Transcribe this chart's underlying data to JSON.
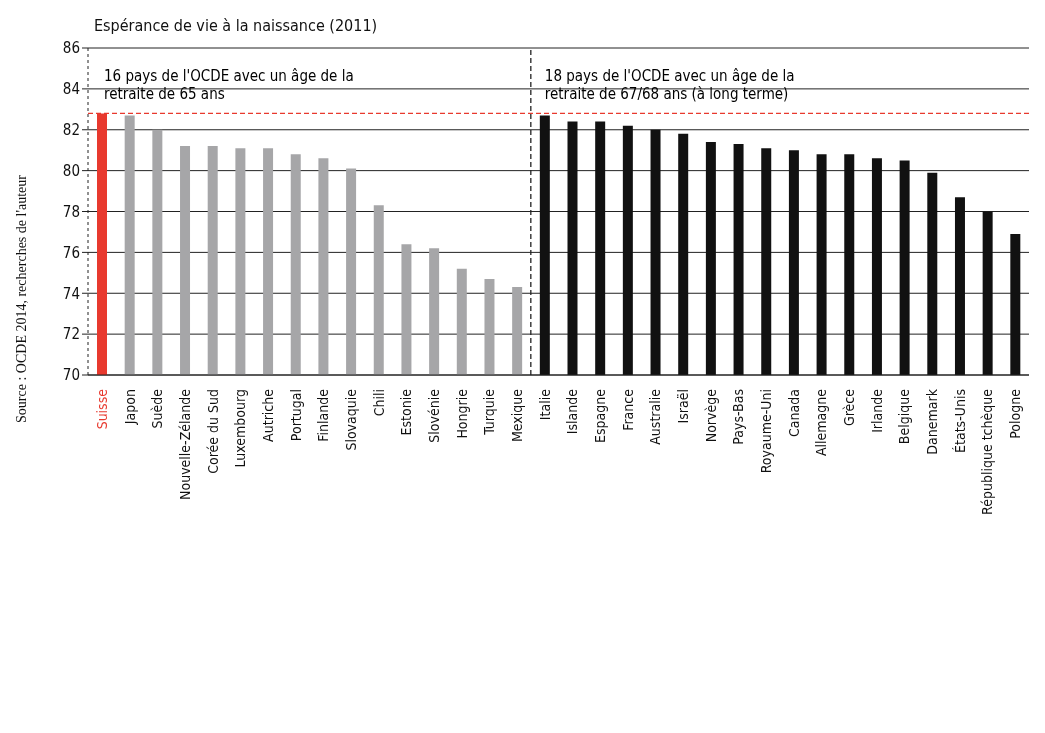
{
  "chart_data": {
    "type": "bar",
    "title": "Espérance de vie à la naissance (2011)",
    "categories": [
      "Suisse",
      "Japon",
      "Suède",
      "Nouvelle-Zélande",
      "Corée du Sud",
      "Luxembourg",
      "Autriche",
      "Portugal",
      "Finlande",
      "Slovaquie",
      "Chili",
      "Estonie",
      "Slovénie",
      "Hongrie",
      "Turquie",
      "Mexique",
      "Italie",
      "Islande",
      "Espagne",
      "France",
      "Australie",
      "Israël",
      "Norvège",
      "Pays-Bas",
      "Royaume-Uni",
      "Canada",
      "Allemagne",
      "Grèce",
      "Irlande",
      "Belgique",
      "Danemark",
      "États-Unis",
      "République tchèque",
      "Pologne"
    ],
    "values": [
      82.8,
      82.7,
      82.0,
      81.2,
      81.2,
      81.1,
      81.1,
      80.8,
      80.6,
      80.1,
      78.3,
      76.4,
      76.2,
      75.2,
      74.7,
      74.3,
      82.7,
      82.4,
      82.4,
      82.2,
      82.0,
      81.8,
      81.4,
      81.3,
      81.1,
      81.0,
      80.8,
      80.8,
      80.6,
      80.5,
      79.9,
      78.7,
      78.0,
      76.9
    ],
    "colors": [
      "#e8392e",
      "#a6a6a8",
      "#a6a6a8",
      "#a6a6a8",
      "#a6a6a8",
      "#a6a6a8",
      "#a6a6a8",
      "#a6a6a8",
      "#a6a6a8",
      "#a6a6a8",
      "#a6a6a8",
      "#a6a6a8",
      "#a6a6a8",
      "#a6a6a8",
      "#a6a6a8",
      "#a6a6a8",
      "#111111",
      "#111111",
      "#111111",
      "#111111",
      "#111111",
      "#111111",
      "#111111",
      "#111111",
      "#111111",
      "#111111",
      "#111111",
      "#111111",
      "#111111",
      "#111111",
      "#111111",
      "#111111",
      "#111111",
      "#111111"
    ],
    "ylim": [
      70,
      86
    ],
    "yticks": [
      70,
      72,
      74,
      76,
      78,
      80,
      82,
      84,
      86
    ],
    "grid": "y",
    "ref_lines": [
      {
        "axis": "y",
        "value": 82.8,
        "color": "#e8392e",
        "line_style": "dashed"
      },
      {
        "axis": "x",
        "value": "Italie",
        "color": "#222222",
        "line_style": "dashed"
      }
    ],
    "annotations": [
      "16 pays de l'OCDE avec un âge de la retraite de 65 ans",
      "18 pays de l'OCDE avec un âge de la retraite de 67/68 ans (à long terme)",
      "Source : OCDE 2014, recherches de l'auteur"
    ]
  }
}
